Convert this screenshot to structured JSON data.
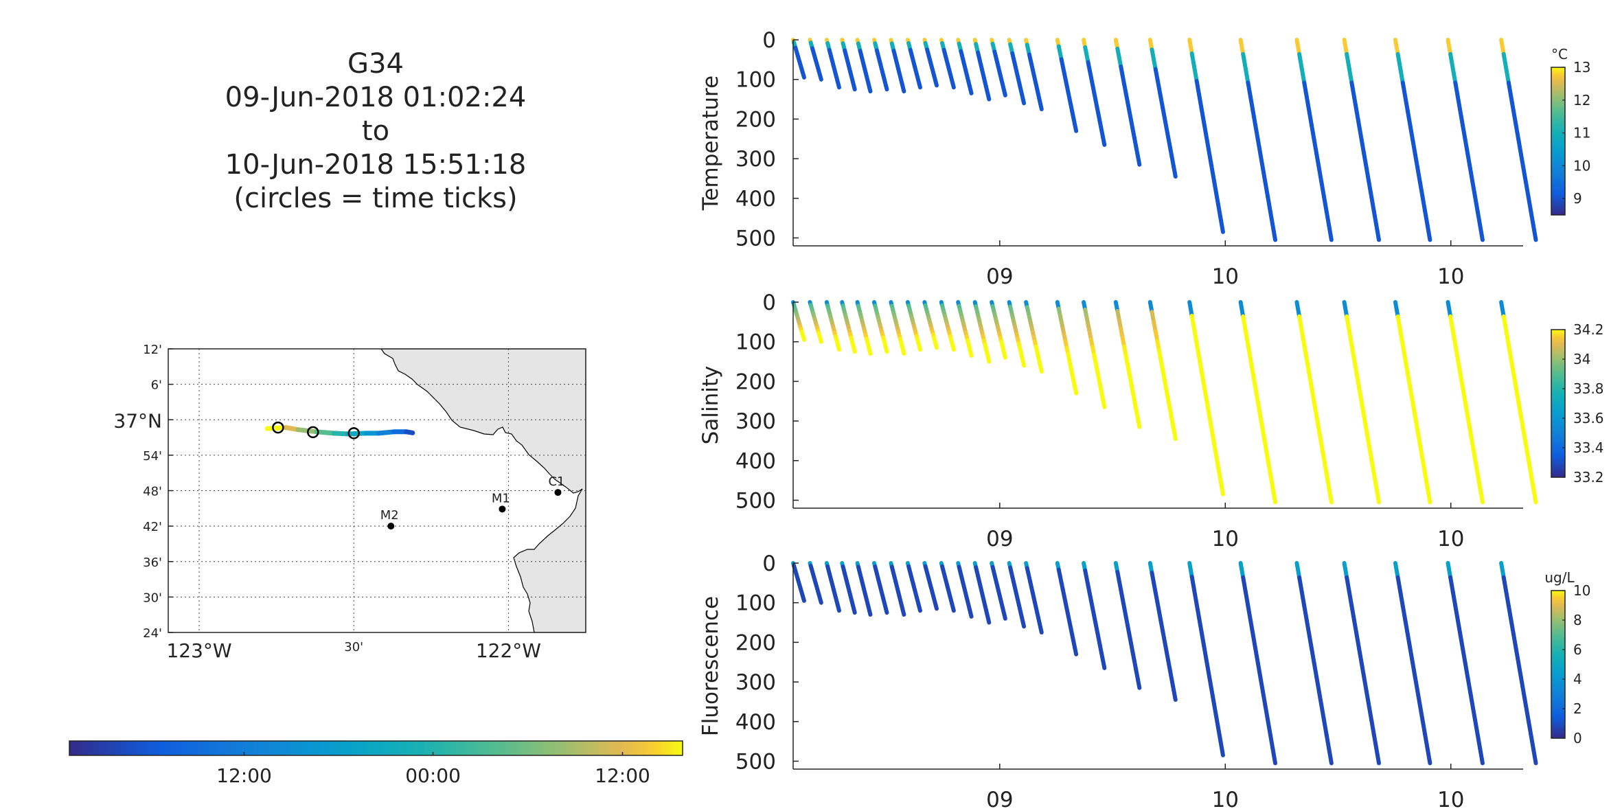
{
  "title_block": {
    "lines": [
      "G34",
      "09-Jun-2018 01:02:24",
      "to",
      "10-Jun-2018 15:51:18",
      "(circles = time ticks)"
    ]
  },
  "map": {
    "lat_labels": [
      "12'",
      "6'",
      "37°N",
      "54'",
      "48'",
      "42'",
      "36'",
      "30'",
      "24'"
    ],
    "lon_labels": [
      "123°W",
      "30'",
      "122°W"
    ],
    "lat_values": [
      37.2,
      37.1,
      37.0,
      36.9,
      36.8,
      36.7,
      36.6,
      36.5,
      36.4
    ],
    "lon_values": [
      -123.0,
      -122.5,
      -122.0
    ],
    "lat_range": [
      36.4,
      37.2
    ],
    "lon_range": [
      -123.1,
      -121.75
    ],
    "land_color": "#e5e5e5",
    "track": [
      {
        "lon": -122.78,
        "lat": 36.975
      },
      {
        "lon": -122.72,
        "lat": 36.978
      },
      {
        "lon": -122.68,
        "lat": 36.972
      },
      {
        "lon": -122.62,
        "lat": 36.966
      },
      {
        "lon": -122.565,
        "lat": 36.962
      },
      {
        "lon": -122.52,
        "lat": 36.96
      },
      {
        "lon": -122.46,
        "lat": 36.962
      },
      {
        "lon": -122.42,
        "lat": 36.962
      },
      {
        "lon": -122.37,
        "lat": 36.966
      },
      {
        "lon": -122.33,
        "lat": 36.966
      },
      {
        "lon": -122.31,
        "lat": 36.963
      }
    ],
    "time_ticks": [
      {
        "lon": -122.745,
        "lat": 36.978
      },
      {
        "lon": -122.632,
        "lat": 36.965
      },
      {
        "lon": -122.5,
        "lat": 36.962
      }
    ],
    "stations": [
      {
        "name": "C1",
        "lon": -121.84,
        "lat": 36.795
      },
      {
        "name": "M1",
        "lon": -122.02,
        "lat": 36.748
      },
      {
        "name": "M2",
        "lon": -122.38,
        "lat": 36.7
      }
    ]
  },
  "time_colorbar": {
    "tick_labels": [
      "12:00",
      "00:00",
      "12:00"
    ],
    "tick_fractions": [
      0.285,
      0.593,
      0.902
    ]
  },
  "chart_data": [
    {
      "type": "scatter",
      "ylabel": "Temperature",
      "unit": "°C",
      "clim": [
        8.5,
        13
      ],
      "cbar_ticks": [
        9,
        10,
        11,
        12,
        13
      ],
      "yticks": [
        0,
        100,
        200,
        300,
        400,
        500
      ],
      "ylim": [
        0,
        520
      ],
      "x_tick_labels": [
        "09",
        "10",
        "10"
      ],
      "colormap": "parula"
    },
    {
      "type": "scatter",
      "ylabel": "Salinity",
      "unit": "",
      "clim": [
        33.2,
        34.2
      ],
      "cbar_ticks": [
        33.2,
        33.4,
        33.6,
        33.8,
        34,
        34.2
      ],
      "yticks": [
        0,
        100,
        200,
        300,
        400,
        500
      ],
      "ylim": [
        0,
        520
      ],
      "x_tick_labels": [
        "09",
        "10",
        "10"
      ],
      "colormap": "parula"
    },
    {
      "type": "scatter",
      "ylabel": "Fluorescence",
      "unit": "ug/L",
      "clim": [
        0,
        10
      ],
      "cbar_ticks": [
        0,
        2,
        4,
        6,
        8,
        10
      ],
      "yticks": [
        0,
        100,
        200,
        300,
        400,
        500
      ],
      "ylim": [
        0,
        520
      ],
      "x_tick_labels": [
        "09",
        "10",
        "10"
      ],
      "colormap": "parula"
    }
  ],
  "profiles": {
    "x_tick_fractions": [
      0.283,
      0.592,
      0.901
    ],
    "dives": [
      {
        "t": 0.0,
        "depth": 95
      },
      {
        "t": 0.023,
        "depth": 100
      },
      {
        "t": 0.046,
        "depth": 120
      },
      {
        "t": 0.067,
        "depth": 125
      },
      {
        "t": 0.088,
        "depth": 130
      },
      {
        "t": 0.111,
        "depth": 125
      },
      {
        "t": 0.134,
        "depth": 130
      },
      {
        "t": 0.157,
        "depth": 120
      },
      {
        "t": 0.18,
        "depth": 115
      },
      {
        "t": 0.203,
        "depth": 120
      },
      {
        "t": 0.226,
        "depth": 135
      },
      {
        "t": 0.249,
        "depth": 150
      },
      {
        "t": 0.272,
        "depth": 140
      },
      {
        "t": 0.296,
        "depth": 160
      },
      {
        "t": 0.319,
        "depth": 175
      },
      {
        "t": 0.362,
        "depth": 230
      },
      {
        "t": 0.398,
        "depth": 265
      },
      {
        "t": 0.442,
        "depth": 315
      },
      {
        "t": 0.489,
        "depth": 345
      },
      {
        "t": 0.543,
        "depth": 485
      },
      {
        "t": 0.613,
        "depth": 505
      },
      {
        "t": 0.69,
        "depth": 505
      },
      {
        "t": 0.755,
        "depth": 505
      },
      {
        "t": 0.825,
        "depth": 505
      },
      {
        "t": 0.897,
        "depth": 505
      },
      {
        "t": 0.97,
        "depth": 505
      }
    ]
  }
}
